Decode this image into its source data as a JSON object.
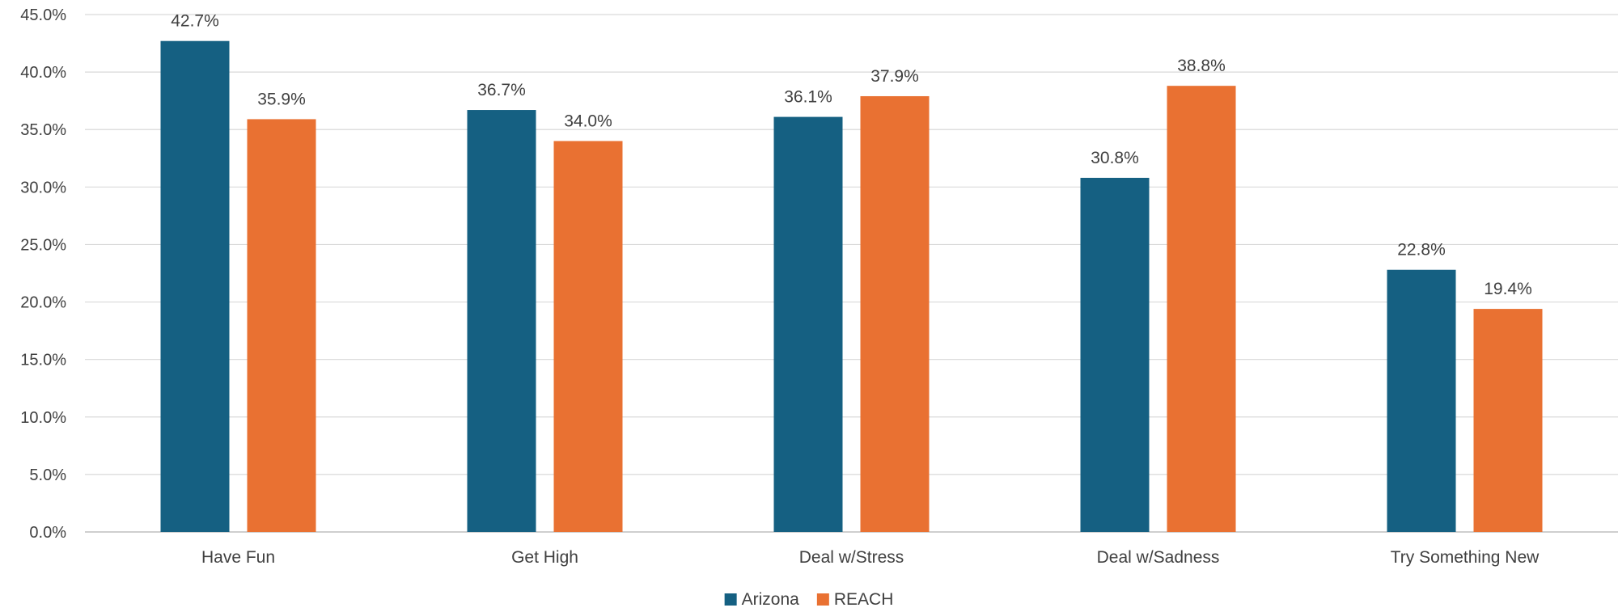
{
  "chart_data": {
    "type": "bar",
    "title": "",
    "xlabel": "",
    "ylabel": "",
    "categories": [
      "Have Fun",
      "Get High",
      "Deal w/Stress",
      "Deal w/Sadness",
      "Try Something New"
    ],
    "series": [
      {
        "name": "Arizona",
        "color": "#156082",
        "values": [
          42.7,
          36.7,
          36.1,
          30.8,
          22.8
        ]
      },
      {
        "name": "REACH",
        "color": "#E97132",
        "values": [
          35.9,
          34.0,
          37.9,
          38.8,
          19.4
        ]
      }
    ],
    "ylim": [
      0,
      45
    ],
    "ytick_step": 5,
    "ytick_labels": [
      "0.0%",
      "5.0%",
      "10.0%",
      "15.0%",
      "20.0%",
      "25.0%",
      "30.0%",
      "35.0%",
      "40.0%",
      "45.0%"
    ],
    "data_labels": true,
    "value_suffix": "%",
    "grid": true,
    "legend": {
      "position": "bottom"
    }
  }
}
